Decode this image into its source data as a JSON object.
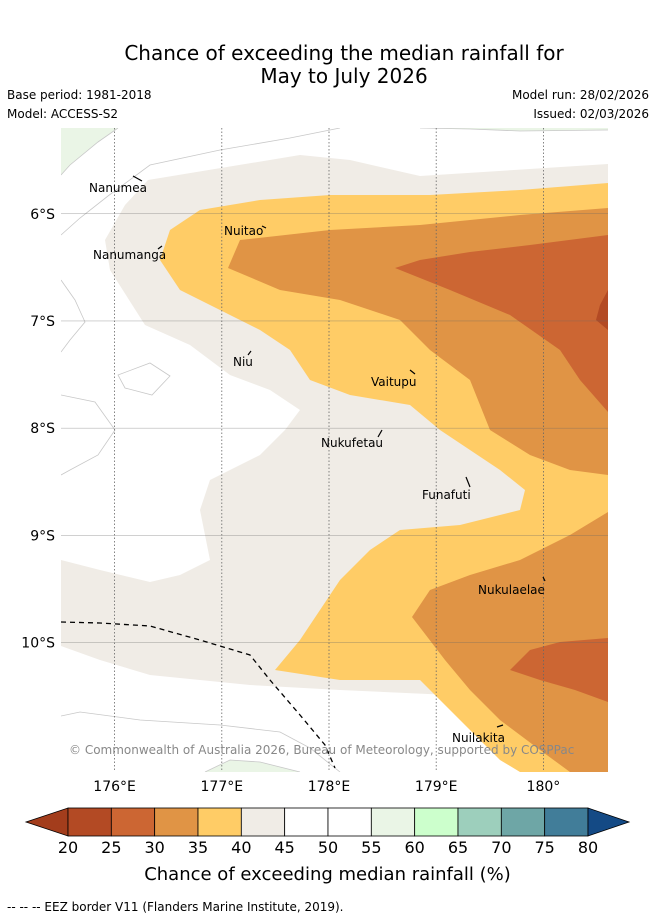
{
  "header": {
    "title_line1": "Chance of exceeding the median rainfall for",
    "title_line2": "May to July 2026",
    "base_period": "Base period: 1981-2018",
    "model": "Model: ACCESS-S2",
    "model_run": "Model run: 28/02/2026",
    "issued": "Issued: 02/03/2026"
  },
  "map": {
    "lon_ticks": [
      "176°E",
      "177°E",
      "178°E",
      "179°E",
      "180°"
    ],
    "lat_ticks": [
      "6°S",
      "7°S",
      "8°S",
      "9°S",
      "10°S"
    ],
    "places": [
      "Nanumea",
      "Nuitao",
      "Nanumanga",
      "Niu",
      "Vaitupu",
      "Nukufetau",
      "Funafuti",
      "Nukulaelae",
      "Nuilakita"
    ],
    "credit": "© Commonwealth of Australia 2026, Bureau of Meteorology, supported by COSPPac"
  },
  "legend": {
    "labels": [
      "20",
      "25",
      "30",
      "35",
      "40",
      "45",
      "50",
      "55",
      "60",
      "65",
      "70",
      "75",
      "80"
    ],
    "colors": [
      "#b34a24",
      "#cc6633",
      "#e09445",
      "#ffcc66",
      "#f0ece6",
      "#ffffff",
      "#ffffff",
      "#eaf5e6",
      "#ccffcc",
      "#9dcfbc",
      "#6ea6a6",
      "#417d99",
      "#1a528c"
    ],
    "low_arrow_color": "#a33d1c",
    "high_arrow_color": "#144a85",
    "title": "Chance of exceeding median rainfall (%)"
  },
  "footer": {
    "eez_note": "-- -- -- EEZ border V11 (Flanders Marine Institute, 2019)."
  }
}
